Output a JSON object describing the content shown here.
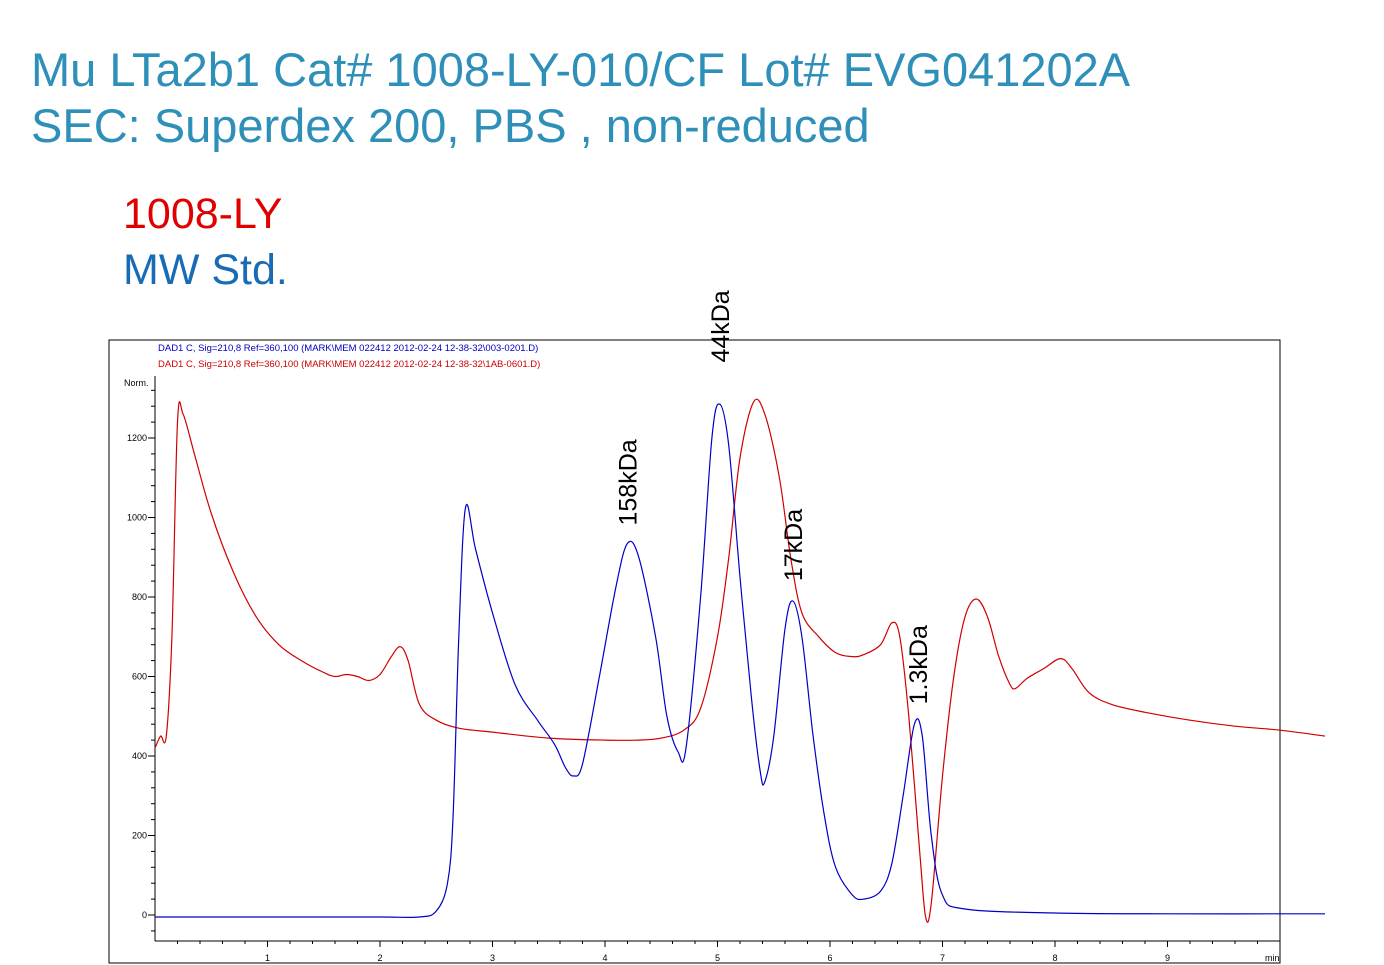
{
  "header": {
    "title_line1": "Mu LTa2b1 Cat# 1008-LY-010/CF Lot# EVG041202A",
    "title_line2": "SEC: Superdex 200, PBS , non-reduced"
  },
  "legend": [
    {
      "label": "1008-LY",
      "color": "#e00000"
    },
    {
      "label": "MW Std.",
      "color": "#1a6bb5"
    }
  ],
  "chart_data": {
    "type": "line",
    "y_axis_title": "Norm.",
    "x_unit_label": "min",
    "xlim": [
      0,
      10.4
    ],
    "ylim": [
      -70,
      1340
    ],
    "x_ticks": [
      1,
      2,
      3,
      4,
      5,
      6,
      7,
      8,
      9
    ],
    "y_ticks": [
      0,
      200,
      400,
      600,
      800,
      1000,
      1200
    ],
    "signal_labels": [
      {
        "text": "DAD1 C, Sig=210,8 Ref=360,100 (MARK\\MEM 022412 2012-02-24 12-38-32\\003-0201.D)",
        "color": "#0000c0"
      },
      {
        "text": "DAD1 C, Sig=210,8 Ref=360,100 (MARK\\MEM 022412 2012-02-24 12-38-32\\1AB-0601.D)",
        "color": "#d00000"
      }
    ],
    "annotations": [
      {
        "text": "158kDa",
        "x": 4.2,
        "y": 980
      },
      {
        "text": "44kDa",
        "x": 5.02,
        "y": 1390
      },
      {
        "text": "17kDa",
        "x": 5.67,
        "y": 840
      },
      {
        "text": "1.3kDa",
        "x": 6.78,
        "y": 530
      }
    ],
    "series": [
      {
        "name": "1008-LY",
        "color": "#d00000",
        "points": [
          [
            0,
            420
          ],
          [
            0.05,
            450
          ],
          [
            0.1,
            450
          ],
          [
            0.15,
            700
          ],
          [
            0.2,
            1240
          ],
          [
            0.25,
            1260
          ],
          [
            0.35,
            1160
          ],
          [
            0.5,
            1010
          ],
          [
            0.7,
            860
          ],
          [
            0.9,
            750
          ],
          [
            1.1,
            680
          ],
          [
            1.3,
            640
          ],
          [
            1.5,
            610
          ],
          [
            1.6,
            600
          ],
          [
            1.7,
            605
          ],
          [
            1.8,
            600
          ],
          [
            1.9,
            590
          ],
          [
            2.0,
            605
          ],
          [
            2.1,
            650
          ],
          [
            2.18,
            675
          ],
          [
            2.25,
            640
          ],
          [
            2.35,
            530
          ],
          [
            2.5,
            490
          ],
          [
            2.7,
            470
          ],
          [
            3.0,
            460
          ],
          [
            3.5,
            445
          ],
          [
            4.0,
            440
          ],
          [
            4.3,
            440
          ],
          [
            4.5,
            445
          ],
          [
            4.7,
            465
          ],
          [
            4.85,
            520
          ],
          [
            5.0,
            700
          ],
          [
            5.1,
            900
          ],
          [
            5.2,
            1150
          ],
          [
            5.32,
            1290
          ],
          [
            5.42,
            1260
          ],
          [
            5.55,
            1100
          ],
          [
            5.65,
            900
          ],
          [
            5.75,
            760
          ],
          [
            5.9,
            700
          ],
          [
            6.05,
            660
          ],
          [
            6.2,
            650
          ],
          [
            6.3,
            655
          ],
          [
            6.45,
            680
          ],
          [
            6.55,
            735
          ],
          [
            6.62,
            700
          ],
          [
            6.7,
            500
          ],
          [
            6.8,
            150
          ],
          [
            6.85,
            -5
          ],
          [
            6.9,
            30
          ],
          [
            7.0,
            350
          ],
          [
            7.1,
            600
          ],
          [
            7.2,
            750
          ],
          [
            7.3,
            795
          ],
          [
            7.4,
            750
          ],
          [
            7.5,
            650
          ],
          [
            7.6,
            580
          ],
          [
            7.65,
            570
          ],
          [
            7.75,
            595
          ],
          [
            7.9,
            620
          ],
          [
            8.05,
            645
          ],
          [
            8.15,
            620
          ],
          [
            8.3,
            560
          ],
          [
            8.5,
            530
          ],
          [
            8.8,
            510
          ],
          [
            9.2,
            490
          ],
          [
            9.6,
            475
          ],
          [
            10.0,
            465
          ],
          [
            10.4,
            450
          ]
        ]
      },
      {
        "name": "MW Std.",
        "color": "#0000c8",
        "points": [
          [
            0,
            -5
          ],
          [
            1,
            -5
          ],
          [
            2,
            -5
          ],
          [
            2.35,
            -5
          ],
          [
            2.5,
            10
          ],
          [
            2.6,
            80
          ],
          [
            2.65,
            250
          ],
          [
            2.7,
            700
          ],
          [
            2.76,
            1025
          ],
          [
            2.85,
            920
          ],
          [
            3.0,
            760
          ],
          [
            3.2,
            580
          ],
          [
            3.4,
            490
          ],
          [
            3.55,
            430
          ],
          [
            3.65,
            370
          ],
          [
            3.72,
            350
          ],
          [
            3.8,
            380
          ],
          [
            3.95,
            600
          ],
          [
            4.1,
            830
          ],
          [
            4.2,
            935
          ],
          [
            4.3,
            900
          ],
          [
            4.45,
            700
          ],
          [
            4.55,
            500
          ],
          [
            4.65,
            410
          ],
          [
            4.72,
            420
          ],
          [
            4.85,
            800
          ],
          [
            4.95,
            1200
          ],
          [
            5.02,
            1285
          ],
          [
            5.1,
            1180
          ],
          [
            5.2,
            850
          ],
          [
            5.3,
            550
          ],
          [
            5.38,
            360
          ],
          [
            5.42,
            335
          ],
          [
            5.5,
            450
          ],
          [
            5.6,
            720
          ],
          [
            5.67,
            790
          ],
          [
            5.75,
            700
          ],
          [
            5.85,
            450
          ],
          [
            5.95,
            250
          ],
          [
            6.05,
            120
          ],
          [
            6.2,
            50
          ],
          [
            6.3,
            40
          ],
          [
            6.45,
            60
          ],
          [
            6.55,
            130
          ],
          [
            6.65,
            300
          ],
          [
            6.75,
            480
          ],
          [
            6.82,
            450
          ],
          [
            6.9,
            200
          ],
          [
            7.0,
            50
          ],
          [
            7.2,
            15
          ],
          [
            8.0,
            5
          ],
          [
            9.0,
            3
          ],
          [
            10.4,
            3
          ]
        ]
      }
    ]
  }
}
